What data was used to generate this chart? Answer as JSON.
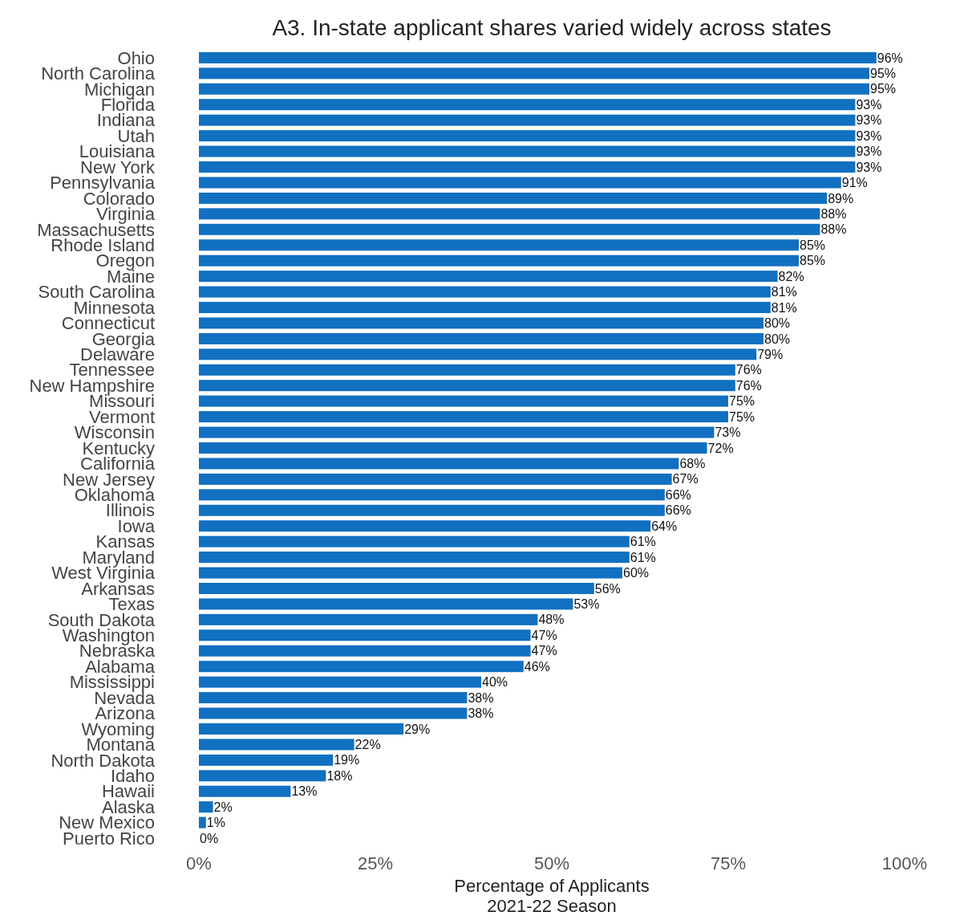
{
  "chart_data": {
    "type": "bar",
    "orientation": "horizontal",
    "title": "A3. In-state applicant shares varied widely across states",
    "xlabel": "Percentage of Applicants\n2021-22 Season",
    "categories": [
      "Ohio",
      "North Carolina",
      "Michigan",
      "Florida",
      "Indiana",
      "Utah",
      "Louisiana",
      "New York",
      "Pennsylvania",
      "Colorado",
      "Virginia",
      "Massachusetts",
      "Rhode Island",
      "Oregon",
      "Maine",
      "South Carolina",
      "Minnesota",
      "Connecticut",
      "Georgia",
      "Delaware",
      "Tennessee",
      "New Hampshire",
      "Missouri",
      "Vermont",
      "Wisconsin",
      "Kentucky",
      "California",
      "New Jersey",
      "Oklahoma",
      "Illinois",
      "Iowa",
      "Kansas",
      "Maryland",
      "West Virginia",
      "Arkansas",
      "Texas",
      "South Dakota",
      "Washington",
      "Nebraska",
      "Alabama",
      "Mississippi",
      "Nevada",
      "Arizona",
      "Wyoming",
      "Montana",
      "North Dakota",
      "Idaho",
      "Hawaii",
      "Alaska",
      "New Mexico",
      "Puerto Rico"
    ],
    "values": [
      96,
      95,
      95,
      93,
      93,
      93,
      93,
      93,
      91,
      89,
      88,
      88,
      85,
      85,
      82,
      81,
      81,
      80,
      80,
      79,
      76,
      76,
      75,
      75,
      73,
      72,
      68,
      67,
      66,
      66,
      64,
      61,
      61,
      60,
      56,
      53,
      48,
      47,
      47,
      46,
      40,
      38,
      38,
      29,
      22,
      19,
      18,
      13,
      2,
      1,
      0
    ],
    "value_labels": [
      "96%",
      "95%",
      "95%",
      "93%",
      "93%",
      "93%",
      "93%",
      "93%",
      "91%",
      "89%",
      "88%",
      "88%",
      "85%",
      "85%",
      "82%",
      "81%",
      "81%",
      "80%",
      "80%",
      "79%",
      "76%",
      "76%",
      "75%",
      "75%",
      "73%",
      "72%",
      "68%",
      "67%",
      "66%",
      "66%",
      "64%",
      "61%",
      "61%",
      "60%",
      "56%",
      "53%",
      "48%",
      "47%",
      "47%",
      "46%",
      "40%",
      "38%",
      "38%",
      "29%",
      "22%",
      "19%",
      "18%",
      "13%",
      "2%",
      "1%",
      "0%"
    ],
    "color": "#1170c0",
    "xlim": [
      0,
      100
    ],
    "xticks": [
      {
        "value": 0,
        "label": "0%"
      },
      {
        "value": 25,
        "label": "25%"
      },
      {
        "value": 50,
        "label": "50%"
      },
      {
        "value": 75,
        "label": "75%"
      },
      {
        "value": 100,
        "label": "100%"
      }
    ],
    "grid": false
  }
}
